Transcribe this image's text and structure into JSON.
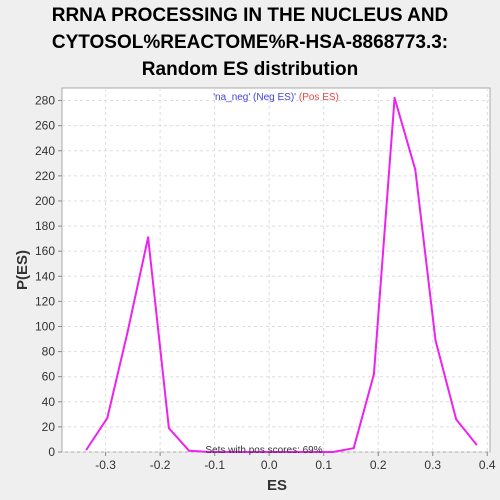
{
  "title_lines": [
    "RRNA PROCESSING IN THE NUCLEUS AND",
    "CYTOSOL%REACTOME%R-HSA-8868773.3:",
    "Random ES distribution"
  ],
  "chart_data": {
    "type": "line",
    "xlabel": "ES",
    "ylabel": "P(ES)",
    "xlim": [
      -0.38,
      0.405
    ],
    "ylim": [
      0,
      290
    ],
    "xticks": [
      -0.3,
      -0.2,
      -0.1,
      0.0,
      0.1,
      0.2,
      0.3,
      0.4
    ],
    "xtick_labels": [
      "-0.3",
      "-0.2",
      "-0.1",
      "0.0",
      "0.1",
      "0.2",
      "0.3",
      "0.4"
    ],
    "yticks": [
      0,
      20,
      40,
      60,
      80,
      100,
      120,
      140,
      160,
      180,
      200,
      220,
      240,
      260,
      280
    ],
    "grid": true,
    "legend": {
      "position": "top-center",
      "parts": [
        {
          "text": "'na_neg' (",
          "color": "#4444dd"
        },
        {
          "text": "Neg ES)' ",
          "color": "#4444dd"
        },
        {
          "text": "(Pos ES)",
          "color": "#ee4444"
        }
      ]
    },
    "annotation": "Sets with pos scores: 69%",
    "series": [
      {
        "color": "#ee22ee",
        "x": [
          -0.335,
          -0.297,
          -0.26,
          -0.222,
          -0.184,
          -0.147,
          -0.109,
          -0.071,
          -0.034,
          0.004,
          0.042,
          0.079,
          0.117,
          0.155,
          0.192,
          0.23,
          0.268,
          0.305,
          0.343,
          0.38
        ],
        "y": [
          2,
          27,
          95,
          171,
          19,
          1,
          0,
          0,
          0,
          0,
          0,
          0,
          0,
          3,
          62,
          282,
          225,
          89,
          26,
          6
        ]
      }
    ]
  }
}
